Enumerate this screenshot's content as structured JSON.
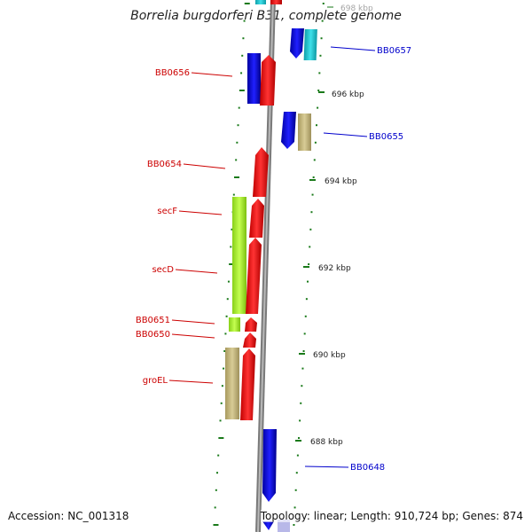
{
  "title": "Borrelia burgdorferi B31, complete genome",
  "footer": {
    "accession": "Accession: NC_001318",
    "summary": "Topology: linear; Length: 910,724 bp; Genes: 874"
  },
  "scale_labels": [
    "698 kbp",
    "696 kbp",
    "694 kbp",
    "692 kbp",
    "690 kbp",
    "688 kbp"
  ],
  "left_gene_labels": [
    "BB0656",
    "BB0654",
    "secF",
    "secD",
    "BB0651",
    "BB0650",
    "groEL"
  ],
  "right_gene_labels": [
    "BB0657",
    "BB0655",
    "BB0648"
  ],
  "colors": {
    "left_label": "#cc0000",
    "right_label": "#0000cc",
    "red_gene": "#ff1a1a",
    "blue_gene": "#0a0aee",
    "cyan_gene": "#19c8d2",
    "lime_gene": "#a8f030",
    "khaki_gene": "#c4b77e",
    "backbone": "#888888",
    "tick": "#1a7a1a"
  }
}
